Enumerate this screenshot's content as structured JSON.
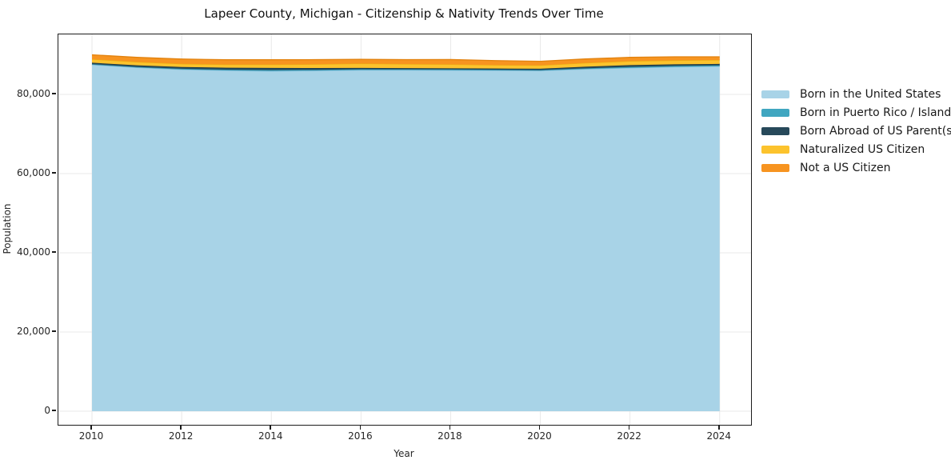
{
  "chart_data": {
    "type": "area",
    "stacked": true,
    "title": "Lapeer County, Michigan - Citizenship & Nativity Trends Over Time",
    "xlabel": "Year",
    "ylabel": "Population",
    "x": [
      2010,
      2011,
      2012,
      2013,
      2014,
      2015,
      2016,
      2017,
      2018,
      2019,
      2020,
      2021,
      2022,
      2023,
      2024
    ],
    "series": [
      {
        "name": "Born in the United States",
        "color": "#a8d3e7",
        "edge": "#84bfdc",
        "values": [
          87500,
          86800,
          86300,
          86050,
          85900,
          86000,
          86150,
          86150,
          86100,
          86050,
          86000,
          86400,
          86700,
          86950,
          87100
        ]
      },
      {
        "name": "Born in Puerto Rico / Islands",
        "color": "#40a6c0",
        "edge": "#338ea6",
        "values": [
          150,
          150,
          180,
          200,
          250,
          220,
          200,
          180,
          200,
          180,
          150,
          200,
          250,
          250,
          250
        ]
      },
      {
        "name": "Born Abroad of US Parent(s)",
        "color": "#27495a",
        "edge": "#1c3845",
        "values": [
          350,
          400,
          450,
          500,
          550,
          450,
          350,
          300,
          300,
          300,
          350,
          400,
          450,
          400,
          350
        ]
      },
      {
        "name": "Naturalized US Citizen",
        "color": "#fcc32d",
        "edge": "#edac10",
        "values": [
          900,
          850,
          800,
          800,
          850,
          950,
          1100,
          1050,
          1000,
          900,
          850,
          950,
          1000,
          1000,
          1000
        ]
      },
      {
        "name": "Not a US Citizen",
        "color": "#f79420",
        "edge": "#e2820e",
        "values": [
          1100,
          1150,
          1200,
          1200,
          1200,
          1150,
          1050,
          1100,
          1200,
          1100,
          1000,
          1000,
          950,
          900,
          800
        ]
      }
    ],
    "xticks": [
      2010,
      2012,
      2014,
      2016,
      2018,
      2020,
      2022,
      2024
    ],
    "xtick_labels": [
      "2010",
      "2012",
      "2014",
      "2016",
      "2018",
      "2020",
      "2022",
      "2024"
    ],
    "yticks": [
      0,
      20000,
      40000,
      60000,
      80000
    ],
    "ytick_labels": [
      "0",
      "20,000",
      "40,000",
      "60,000",
      "80,000"
    ],
    "xlim": [
      2009.25,
      2024.7
    ],
    "ylim": [
      -3435,
      95150
    ],
    "grid": true,
    "grid_color": "#e8e8e8",
    "legend_position": "right-outside"
  }
}
